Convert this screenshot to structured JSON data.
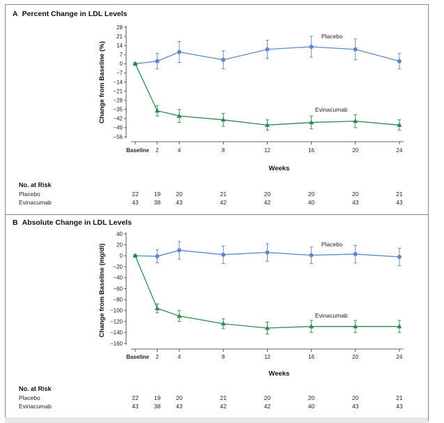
{
  "panels": [
    {
      "letter": "A",
      "title": "Percent Change in LDL Levels"
    },
    {
      "letter": "B",
      "title": "Absolute Change in LDL Levels"
    }
  ],
  "risk_table": {
    "heading": "No. at Risk",
    "rows": [
      "Placebo",
      "Evinacumab"
    ]
  },
  "colors": {
    "placebo": "#5b87c5",
    "evinacumab": "#2e8b4f"
  },
  "chart_data": [
    {
      "type": "line",
      "title": "Percent Change in LDL Levels",
      "xlabel": "Weeks",
      "ylabel": "Change from Baseline (%)",
      "x": [
        "Baseline",
        "2",
        "4",
        "8",
        "12",
        "16",
        "20",
        "24"
      ],
      "x_values": [
        0,
        2,
        4,
        8,
        12,
        16,
        20,
        24
      ],
      "ylim": [
        -56,
        28
      ],
      "yticks": [
        28,
        21,
        14,
        7,
        0,
        -7,
        -14,
        -21,
        -28,
        -35,
        -42,
        -49,
        -56
      ],
      "series": [
        {
          "name": "Placebo",
          "marker": "circle",
          "values": [
            0,
            2,
            9,
            3,
            11,
            13,
            11,
            2
          ],
          "errors": [
            0,
            6,
            8,
            7,
            7,
            8,
            8,
            6
          ]
        },
        {
          "name": "Evinacumab",
          "marker": "triangle",
          "values": [
            0,
            -36,
            -40,
            -43,
            -47,
            -45,
            -44,
            -47
          ],
          "errors": [
            0,
            4,
            5,
            5,
            4,
            5,
            5,
            4
          ]
        }
      ],
      "at_risk": {
        "Placebo": [
          22,
          19,
          20,
          21,
          20,
          20,
          20,
          21
        ],
        "Evinacumab": [
          43,
          38,
          43,
          42,
          42,
          40,
          43,
          43
        ]
      },
      "grid": false,
      "legend": "inline labels"
    },
    {
      "type": "line",
      "title": "Absolute Change in LDL Levels",
      "xlabel": "Weeks",
      "ylabel": "Change from Baseline (mg/dl)",
      "x": [
        "Baseline",
        "2",
        "4",
        "8",
        "12",
        "16",
        "20",
        "24"
      ],
      "x_values": [
        0,
        2,
        4,
        8,
        12,
        16,
        20,
        24
      ],
      "ylim": [
        -160,
        40
      ],
      "yticks": [
        40,
        20,
        0,
        -20,
        -40,
        -60,
        -80,
        -100,
        -120,
        -140,
        -160
      ],
      "series": [
        {
          "name": "Placebo",
          "marker": "circle",
          "values": [
            0,
            -1,
            10,
            2,
            6,
            1,
            3,
            -2
          ],
          "errors": [
            0,
            12,
            16,
            16,
            16,
            15,
            16,
            16
          ]
        },
        {
          "name": "Evinacumab",
          "marker": "triangle",
          "values": [
            0,
            -96,
            -110,
            -124,
            -132,
            -129,
            -129,
            -129
          ],
          "errors": [
            0,
            8,
            10,
            9,
            11,
            11,
            11,
            11
          ]
        }
      ],
      "at_risk": {
        "Placebo": [
          22,
          19,
          20,
          21,
          20,
          20,
          20,
          21
        ],
        "Evinacumab": [
          43,
          38,
          43,
          42,
          42,
          40,
          43,
          43
        ]
      },
      "grid": false,
      "legend": "inline labels"
    }
  ]
}
